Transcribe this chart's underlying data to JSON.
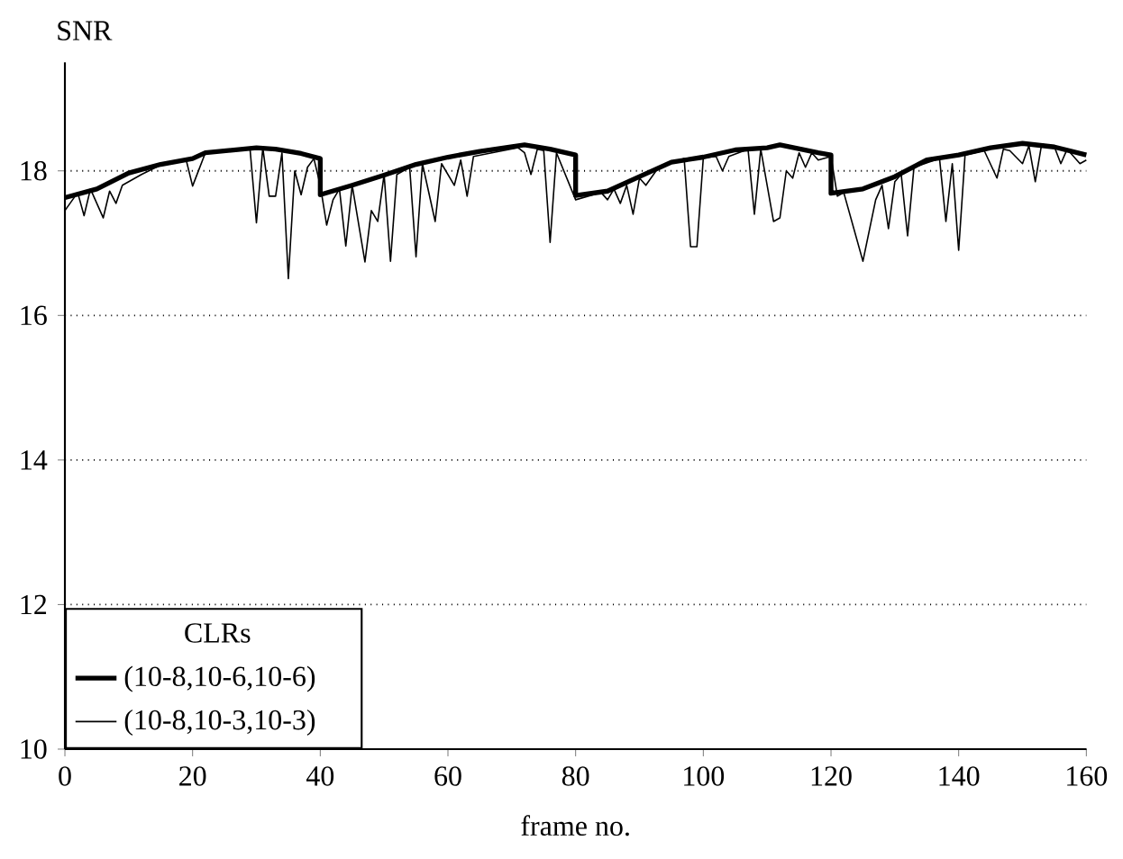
{
  "chart_data": {
    "type": "line",
    "xlabel": "frame no.",
    "ylabel": "SNR",
    "legend_title": "CLRs",
    "xlim": [
      0,
      160
    ],
    "xticks": [
      0,
      20,
      40,
      60,
      80,
      100,
      120,
      140,
      160
    ],
    "ylim": [
      10,
      19.5
    ],
    "yticks": [
      10,
      12,
      14,
      16,
      18
    ],
    "grid": "y",
    "legend": "bottom left",
    "marker": "none",
    "line_style": "solid",
    "series": [
      {
        "name": "(10-8,10-6,10-6)",
        "color": "#000000",
        "x": [
          0,
          5,
          10,
          15,
          20,
          22,
          30,
          33,
          37,
          40,
          40,
          45,
          50,
          55,
          60,
          65,
          72,
          76,
          80,
          80,
          85,
          90,
          95,
          100,
          105,
          110,
          112,
          118,
          120,
          120,
          125,
          130,
          135,
          140,
          145,
          150,
          155,
          160
        ],
        "values": [
          17.63,
          17.75,
          17.97,
          18.09,
          18.17,
          18.25,
          18.32,
          18.3,
          18.24,
          18.17,
          17.67,
          17.8,
          17.94,
          18.09,
          18.19,
          18.27,
          18.36,
          18.3,
          18.22,
          17.66,
          17.72,
          17.92,
          18.12,
          18.19,
          18.29,
          18.32,
          18.36,
          18.25,
          18.22,
          17.69,
          17.75,
          17.92,
          18.15,
          18.22,
          18.32,
          18.38,
          18.33,
          18.22
        ]
      },
      {
        "name": "(10-8,10-3,10-3)",
        "color": "#000000",
        "x": [
          0,
          2,
          3,
          4,
          6,
          7,
          8,
          9,
          12,
          15,
          19,
          20,
          22,
          29,
          30,
          31,
          32,
          33,
          34,
          35,
          36,
          37,
          38,
          39,
          40,
          41,
          42,
          43,
          44,
          45,
          47,
          48,
          49,
          50,
          51,
          52,
          54,
          55,
          56,
          58,
          59,
          61,
          62,
          63,
          64,
          71,
          72,
          73,
          74,
          75,
          76,
          77,
          80,
          84,
          85,
          86,
          87,
          88,
          89,
          90,
          91,
          93,
          97,
          98,
          99,
          100,
          102,
          103,
          104,
          107,
          108,
          109,
          110,
          111,
          112,
          113,
          114,
          115,
          116,
          117,
          118,
          120,
          121,
          122,
          125,
          127,
          128,
          129,
          130,
          131,
          132,
          133,
          137,
          138,
          139,
          140,
          141,
          144,
          146,
          147,
          148,
          150,
          151,
          152,
          153,
          155,
          156,
          157,
          159,
          160
        ],
        "values": [
          17.45,
          17.7,
          17.38,
          17.75,
          17.35,
          17.72,
          17.55,
          17.8,
          17.95,
          18.08,
          18.15,
          17.79,
          18.25,
          18.3,
          17.28,
          18.32,
          17.65,
          17.65,
          18.25,
          16.51,
          18.0,
          17.67,
          18.05,
          18.17,
          17.8,
          17.25,
          17.6,
          17.75,
          16.96,
          17.8,
          16.74,
          17.45,
          17.3,
          17.95,
          16.75,
          17.95,
          18.05,
          16.81,
          18.1,
          17.3,
          18.1,
          17.8,
          18.15,
          17.65,
          18.2,
          18.32,
          18.25,
          17.95,
          18.3,
          18.28,
          17.01,
          18.25,
          17.6,
          17.7,
          17.6,
          17.75,
          17.55,
          17.8,
          17.4,
          17.9,
          17.8,
          18.05,
          18.17,
          16.95,
          16.95,
          18.18,
          18.2,
          18.0,
          18.2,
          18.3,
          17.4,
          18.3,
          17.8,
          17.3,
          17.35,
          18.0,
          17.9,
          18.25,
          18.05,
          18.25,
          18.15,
          18.2,
          17.65,
          17.7,
          16.75,
          17.6,
          17.8,
          17.2,
          17.85,
          17.95,
          17.1,
          18.05,
          18.17,
          17.3,
          18.1,
          16.9,
          18.22,
          18.28,
          17.9,
          18.3,
          18.28,
          18.1,
          18.35,
          17.85,
          18.37,
          18.33,
          18.1,
          18.3,
          18.1,
          18.15
        ]
      }
    ]
  }
}
